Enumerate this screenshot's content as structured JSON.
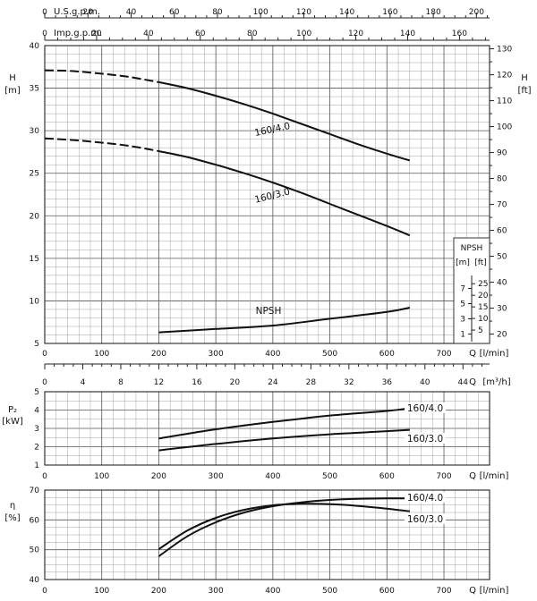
{
  "chart_data": [
    {
      "type": "line",
      "panel": "head",
      "xlabel": "Q [l/min]",
      "xlim": [
        0,
        780
      ],
      "ylabel_left": "H [m]",
      "ylim_left": [
        5,
        40
      ],
      "ylabel_right": "H [ft]",
      "ylim_right": [
        16.4,
        131.2
      ],
      "left_ticks": [
        5,
        10,
        15,
        20,
        25,
        30,
        35,
        40
      ],
      "right_ticks": [
        20,
        30,
        40,
        50,
        60,
        70,
        80,
        90,
        100,
        110,
        120,
        130
      ],
      "x_ticks": [
        0,
        100,
        200,
        300,
        400,
        500,
        600,
        700
      ],
      "top_axes": [
        {
          "label": "U.S.g.p.m.",
          "factor": 0.2642,
          "ticks": [
            0,
            20,
            40,
            60,
            80,
            100,
            120,
            140,
            160,
            180,
            200
          ]
        },
        {
          "label": "Imp.g.p.m.",
          "factor": 0.22,
          "ticks": [
            0,
            20,
            40,
            60,
            80,
            100,
            120,
            140,
            160
          ]
        }
      ],
      "bottom_axis2": {
        "label": "Q [m³/h]",
        "factor": 0.06,
        "ticks": [
          0,
          4,
          8,
          12,
          16,
          20,
          24,
          28,
          32,
          36,
          40,
          44
        ]
      },
      "series": [
        {
          "name": "160/4.0",
          "dashed_until": 200,
          "x": [
            0,
            50,
            100,
            150,
            200,
            250,
            300,
            350,
            400,
            450,
            500,
            550,
            600,
            640
          ],
          "y": [
            37.1,
            37.0,
            36.7,
            36.3,
            35.7,
            35.0,
            34.1,
            33.1,
            32.0,
            30.8,
            29.6,
            28.4,
            27.3,
            26.5
          ]
        },
        {
          "name": "160/3.0",
          "dashed_until": 200,
          "x": [
            0,
            50,
            100,
            150,
            200,
            250,
            300,
            350,
            400,
            450,
            500,
            550,
            600,
            640
          ],
          "y": [
            29.1,
            28.9,
            28.6,
            28.2,
            27.6,
            26.9,
            26.0,
            25.0,
            23.9,
            22.7,
            21.4,
            20.1,
            18.8,
            17.7
          ]
        },
        {
          "name": "NPSH",
          "dashed_until": 0,
          "x": [
            200,
            300,
            400,
            500,
            600,
            640
          ],
          "y": [
            6.3,
            6.7,
            7.1,
            7.9,
            8.7,
            9.2
          ]
        }
      ],
      "npsh_scale": {
        "header": "NPSH",
        "units": [
          "[m]",
          "[ft]"
        ],
        "m_ticks": [
          1,
          3,
          5,
          7
        ],
        "ft_ticks": [
          5,
          10,
          15,
          20,
          25
        ]
      }
    },
    {
      "type": "line",
      "panel": "power",
      "xlabel": "Q [l/min]",
      "xlim": [
        0,
        780
      ],
      "ylabel": "P₂ [kW]",
      "ylim": [
        1,
        5
      ],
      "y_ticks": [
        1,
        2,
        3,
        4,
        5
      ],
      "x_ticks": [
        0,
        100,
        200,
        300,
        400,
        500,
        600,
        700
      ],
      "series": [
        {
          "name": "160/4.0",
          "x": [
            200,
            300,
            400,
            500,
            600,
            640
          ],
          "y": [
            2.45,
            2.95,
            3.35,
            3.7,
            3.95,
            4.1
          ]
        },
        {
          "name": "160/3.0",
          "x": [
            200,
            300,
            400,
            500,
            600,
            640
          ],
          "y": [
            1.8,
            2.15,
            2.45,
            2.68,
            2.85,
            2.92
          ]
        }
      ]
    },
    {
      "type": "line",
      "panel": "efficiency",
      "xlabel": "Q [l/min]",
      "xlim": [
        0,
        780
      ],
      "ylabel": "η [%]",
      "ylim": [
        40,
        70
      ],
      "y_ticks": [
        40,
        50,
        60,
        70
      ],
      "x_ticks": [
        0,
        100,
        200,
        300,
        400,
        500,
        600,
        700
      ],
      "series": [
        {
          "name": "160/4.0",
          "x": [
            200,
            250,
            300,
            350,
            400,
            450,
            500,
            550,
            600,
            640
          ],
          "y": [
            47.8,
            54.5,
            59.2,
            62.5,
            64.6,
            65.9,
            66.7,
            67.1,
            67.2,
            67.2
          ]
        },
        {
          "name": "160/3.0",
          "x": [
            200,
            250,
            300,
            350,
            400,
            450,
            500,
            550,
            600,
            640
          ],
          "y": [
            50.2,
            56.4,
            60.7,
            63.4,
            64.9,
            65.4,
            65.3,
            64.7,
            63.8,
            62.9
          ]
        }
      ]
    }
  ]
}
